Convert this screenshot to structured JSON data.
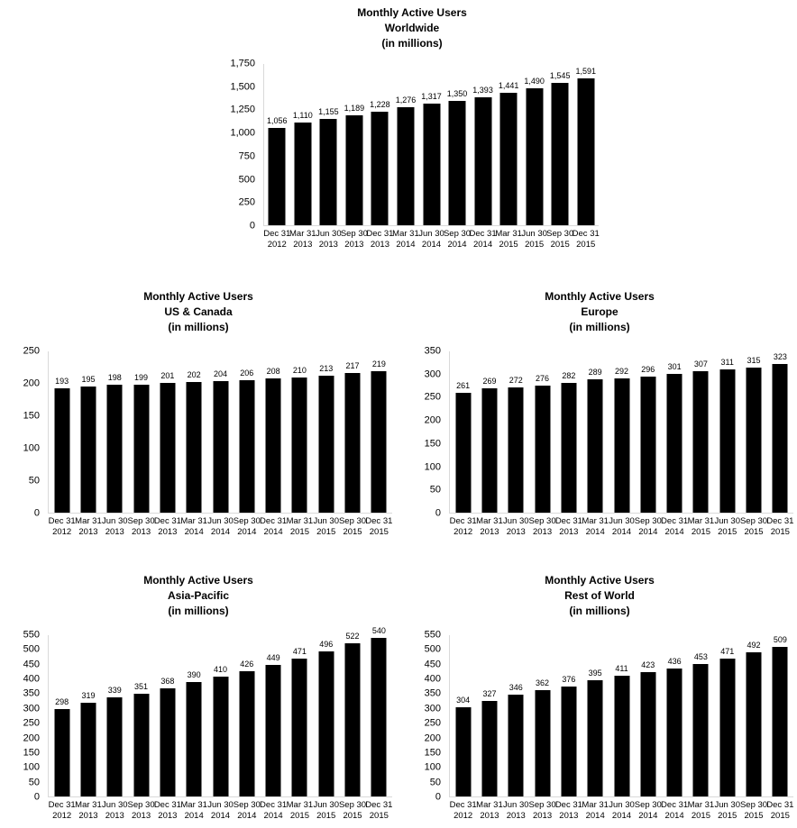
{
  "page": {
    "background": "#ffffff",
    "text_color": "#000000"
  },
  "chart_data": [
    {
      "id": "worldwide",
      "type": "bar",
      "title_line1": "Monthly Active Users",
      "title_line2": "Worldwide",
      "title_line3": "(in millions)",
      "categories": [
        "Dec 31 2012",
        "Mar 31 2013",
        "Jun 30 2013",
        "Sep 30 2013",
        "Dec 31 2013",
        "Mar 31 2014",
        "Jun 30 2014",
        "Sep 30 2014",
        "Dec 31 2014",
        "Mar 31 2015",
        "Jun 30 2015",
        "Sep 30 2015",
        "Dec 31 2015"
      ],
      "values": [
        1056,
        1110,
        1155,
        1189,
        1228,
        1276,
        1317,
        1350,
        1393,
        1441,
        1490,
        1545,
        1591
      ],
      "value_labels": [
        "1,056",
        "1,110",
        "1,155",
        "1,189",
        "1,228",
        "1,276",
        "1,317",
        "1,350",
        "1,393",
        "1,441",
        "1,490",
        "1,545",
        "1,591"
      ],
      "ylim": [
        0,
        1750
      ],
      "yticks": [
        "0",
        "250",
        "500",
        "750",
        "1,000",
        "1,250",
        "1,500",
        "1,750"
      ],
      "xlabel": "",
      "ylabel": "",
      "bar_color": "#000000",
      "axis_color": "#d9d9d9",
      "grid": false,
      "legend": false
    },
    {
      "id": "us-canada",
      "type": "bar",
      "title_line1": "Monthly Active Users",
      "title_line2": "US & Canada",
      "title_line3": "(in millions)",
      "categories": [
        "Dec 31 2012",
        "Mar 31 2013",
        "Jun 30 2013",
        "Sep 30 2013",
        "Dec 31 2013",
        "Mar 31 2014",
        "Jun 30 2014",
        "Sep 30 2014",
        "Dec 31 2014",
        "Mar 31 2015",
        "Jun 30 2015",
        "Sep 30 2015",
        "Dec 31 2015"
      ],
      "values": [
        193,
        195,
        198,
        199,
        201,
        202,
        204,
        206,
        208,
        210,
        213,
        217,
        219
      ],
      "value_labels": [
        "193",
        "195",
        "198",
        "199",
        "201",
        "202",
        "204",
        "206",
        "208",
        "210",
        "213",
        "217",
        "219"
      ],
      "ylim": [
        0,
        250
      ],
      "yticks": [
        "0",
        "50",
        "100",
        "150",
        "200",
        "250"
      ],
      "xlabel": "",
      "ylabel": "",
      "bar_color": "#000000",
      "axis_color": "#d9d9d9",
      "grid": false,
      "legend": false
    },
    {
      "id": "europe",
      "type": "bar",
      "title_line1": "Monthly Active Users",
      "title_line2": "Europe",
      "title_line3": "(in millions)",
      "categories": [
        "Dec 31 2012",
        "Mar 31 2013",
        "Jun 30 2013",
        "Sep 30 2013",
        "Dec 31 2013",
        "Mar 31 2014",
        "Jun 30 2014",
        "Sep 30 2014",
        "Dec 31 2014",
        "Mar 31 2015",
        "Jun 30 2015",
        "Sep 30 2015",
        "Dec 31 2015"
      ],
      "values": [
        261,
        269,
        272,
        276,
        282,
        289,
        292,
        296,
        301,
        307,
        311,
        315,
        323
      ],
      "value_labels": [
        "261",
        "269",
        "272",
        "276",
        "282",
        "289",
        "292",
        "296",
        "301",
        "307",
        "311",
        "315",
        "323"
      ],
      "ylim": [
        0,
        350
      ],
      "yticks": [
        "0",
        "50",
        "100",
        "150",
        "200",
        "250",
        "300",
        "350"
      ],
      "xlabel": "",
      "ylabel": "",
      "bar_color": "#000000",
      "axis_color": "#d9d9d9",
      "grid": false,
      "legend": false
    },
    {
      "id": "asia-pacific",
      "type": "bar",
      "title_line1": "Monthly Active Users",
      "title_line2": "Asia-Pacific",
      "title_line3": "(in millions)",
      "categories": [
        "Dec 31 2012",
        "Mar 31 2013",
        "Jun 30 2013",
        "Sep 30 2013",
        "Dec 31 2013",
        "Mar 31 2014",
        "Jun 30 2014",
        "Sep 30 2014",
        "Dec 31 2014",
        "Mar 31 2015",
        "Jun 30 2015",
        "Sep 30 2015",
        "Dec 31 2015"
      ],
      "values": [
        298,
        319,
        339,
        351,
        368,
        390,
        410,
        426,
        449,
        471,
        496,
        522,
        540
      ],
      "value_labels": [
        "298",
        "319",
        "339",
        "351",
        "368",
        "390",
        "410",
        "426",
        "449",
        "471",
        "496",
        "522",
        "540"
      ],
      "ylim": [
        0,
        550
      ],
      "yticks": [
        "0",
        "50",
        "100",
        "150",
        "200",
        "250",
        "300",
        "350",
        "400",
        "450",
        "500",
        "550"
      ],
      "xlabel": "",
      "ylabel": "",
      "bar_color": "#000000",
      "axis_color": "#d9d9d9",
      "grid": false,
      "legend": false
    },
    {
      "id": "rest-of-world",
      "type": "bar",
      "title_line1": "Monthly Active Users",
      "title_line2": "Rest of World",
      "title_line3": "(in millions)",
      "categories": [
        "Dec 31 2012",
        "Mar 31 2013",
        "Jun 30 2013",
        "Sep 30 2013",
        "Dec 31 2013",
        "Mar 31 2014",
        "Jun 30 2014",
        "Sep 30 2014",
        "Dec 31 2014",
        "Mar 31 2015",
        "Jun 30 2015",
        "Sep 30 2015",
        "Dec 31 2015"
      ],
      "values": [
        304,
        327,
        346,
        362,
        376,
        395,
        411,
        423,
        436,
        453,
        471,
        492,
        509
      ],
      "value_labels": [
        "304",
        "327",
        "346",
        "362",
        "376",
        "395",
        "411",
        "423",
        "436",
        "453",
        "471",
        "492",
        "509"
      ],
      "ylim": [
        0,
        550
      ],
      "yticks": [
        "0",
        "50",
        "100",
        "150",
        "200",
        "250",
        "300",
        "350",
        "400",
        "450",
        "500",
        "550"
      ],
      "xlabel": "",
      "ylabel": "",
      "bar_color": "#000000",
      "axis_color": "#d9d9d9",
      "grid": false,
      "legend": false
    }
  ]
}
